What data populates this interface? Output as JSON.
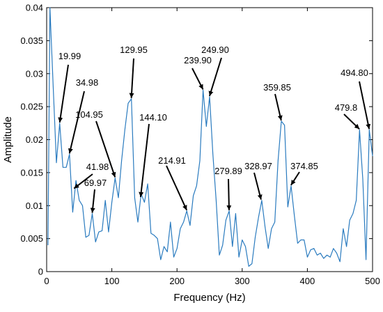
{
  "chart_data": {
    "type": "line",
    "xlabel": "Frequency (Hz)",
    "ylabel": "Amplitude",
    "xlim": [
      0,
      500
    ],
    "ylim": [
      0,
      0.04
    ],
    "xticks": [
      0,
      100,
      200,
      300,
      400,
      500
    ],
    "yticks": [
      0,
      0.005,
      0.01,
      0.015,
      0.02,
      0.025,
      0.03,
      0.035,
      0.04
    ],
    "xtick_labels": [
      "0",
      "100",
      "200",
      "300",
      "400",
      "500"
    ],
    "ytick_labels": [
      "0",
      "0.005",
      "0.01",
      "0.015",
      "0.02",
      "0.025",
      "0.03",
      "0.035",
      "0.04"
    ],
    "line_color": "#2a7bbf",
    "grid": false,
    "series": [
      {
        "x": [
          2,
          5,
          10,
          15,
          20,
          25,
          30,
          35,
          40,
          45,
          50,
          55,
          60,
          65,
          70,
          75,
          80,
          85,
          90,
          95,
          100,
          105,
          110,
          115,
          120,
          125,
          130,
          135,
          140,
          145,
          150,
          155,
          160,
          165,
          170,
          175,
          180,
          185,
          190,
          195,
          200,
          205,
          210,
          215,
          220,
          225,
          230,
          235,
          240,
          245,
          250,
          255,
          260,
          265,
          270,
          275,
          280,
          285,
          290,
          295,
          300,
          305,
          310,
          315,
          320,
          325,
          330,
          335,
          340,
          345,
          350,
          355,
          360,
          365,
          370,
          375,
          380,
          385,
          390,
          395,
          400,
          405,
          410,
          415,
          420,
          425,
          430,
          435,
          440,
          445,
          450,
          455,
          460,
          465,
          470,
          475,
          480,
          485,
          490,
          495,
          500
        ],
        "y": [
          0.004,
          0.04,
          0.028,
          0.0165,
          0.0225,
          0.0158,
          0.0158,
          0.0178,
          0.009,
          0.0138,
          0.0108,
          0.01,
          0.0052,
          0.0055,
          0.0088,
          0.0045,
          0.006,
          0.0062,
          0.0108,
          0.006,
          0.0105,
          0.0142,
          0.0112,
          0.0168,
          0.0215,
          0.0255,
          0.0262,
          0.0112,
          0.0075,
          0.0118,
          0.0105,
          0.0133,
          0.0058,
          0.0055,
          0.005,
          0.0018,
          0.0038,
          0.003,
          0.0075,
          0.0022,
          0.0035,
          0.0065,
          0.0075,
          0.0092,
          0.007,
          0.0115,
          0.013,
          0.0168,
          0.0275,
          0.022,
          0.0265,
          0.0178,
          0.0108,
          0.0025,
          0.004,
          0.0078,
          0.0092,
          0.0038,
          0.0088,
          0.0022,
          0.0048,
          0.0038,
          0.0008,
          0.0012,
          0.0052,
          0.0082,
          0.0108,
          0.0068,
          0.0035,
          0.0065,
          0.0075,
          0.0168,
          0.0228,
          0.0222,
          0.0098,
          0.013,
          0.0085,
          0.0043,
          0.0048,
          0.0048,
          0.0022,
          0.0033,
          0.0035,
          0.0025,
          0.0028,
          0.002,
          0.0025,
          0.0022,
          0.0035,
          0.0028,
          0.0015,
          0.0065,
          0.0038,
          0.0078,
          0.0088,
          0.0108,
          0.0215,
          0.014,
          0.0018,
          0.0215,
          0.0175
        ]
      }
    ],
    "annotations": [
      {
        "label": "19.99",
        "x": 19.99,
        "y": 0.0225
      },
      {
        "label": "34.98",
        "x": 34.98,
        "y": 0.0178
      },
      {
        "label": "41.98",
        "x": 41.98,
        "y": 0.0125
      },
      {
        "label": "69.97",
        "x": 69.97,
        "y": 0.0088
      },
      {
        "label": "104.95",
        "x": 104.95,
        "y": 0.0142
      },
      {
        "label": "129.95",
        "x": 129.95,
        "y": 0.0262
      },
      {
        "label": "144.10",
        "x": 144.1,
        "y": 0.0112
      },
      {
        "label": "214.91",
        "x": 214.91,
        "y": 0.0092
      },
      {
        "label": "239.90",
        "x": 239.9,
        "y": 0.0275
      },
      {
        "label": "249.90",
        "x": 249.9,
        "y": 0.0265
      },
      {
        "label": "279.89",
        "x": 279.89,
        "y": 0.0092
      },
      {
        "label": "328.97",
        "x": 328.97,
        "y": 0.0108
      },
      {
        "label": "359.85",
        "x": 359.85,
        "y": 0.0228
      },
      {
        "label": "374.85",
        "x": 374.85,
        "y": 0.013
      },
      {
        "label": "479.8",
        "x": 479.8,
        "y": 0.0215
      },
      {
        "label": "494.80",
        "x": 494.8,
        "y": 0.0215
      }
    ]
  }
}
